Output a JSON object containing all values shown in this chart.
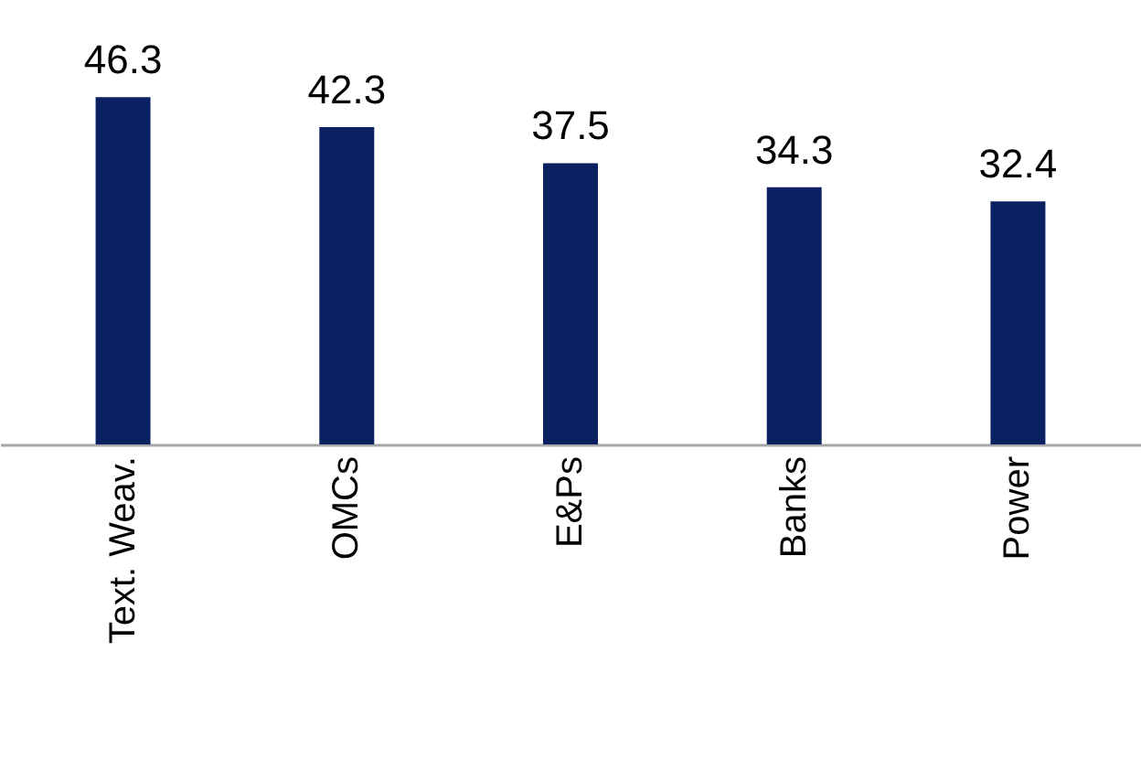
{
  "chart_data": {
    "type": "bar",
    "categories": [
      "Text. Weav.",
      "OMCs",
      "E&Ps",
      "Banks",
      "Power"
    ],
    "values": [
      46.3,
      42.3,
      37.5,
      34.3,
      32.4
    ],
    "color": "#0b2161",
    "data_labels": true,
    "grid": false
  }
}
